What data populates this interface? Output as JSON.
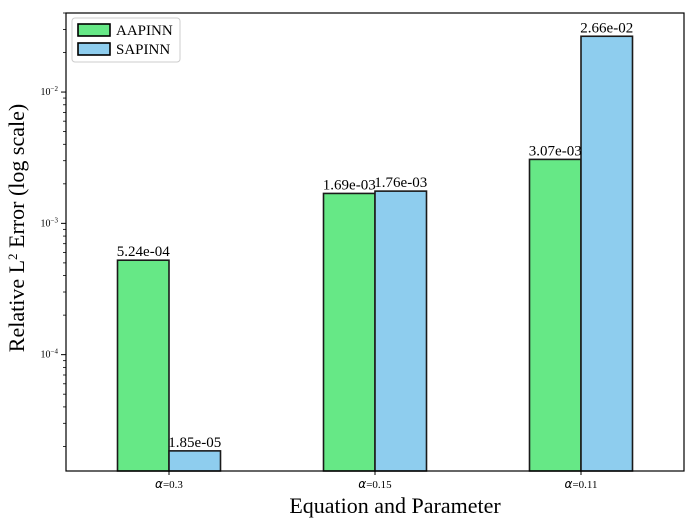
{
  "chart_data": {
    "type": "bar",
    "title": "",
    "xlabel": "Equation and Parameter",
    "ylabel": "Relative L",
    "ylabel_sup": "2",
    "ylabel_suffix": " Error (log scale)",
    "yscale": "log",
    "ylim": [
      1.3e-05,
      0.04
    ],
    "grid": false,
    "legend_position": "top-left",
    "categories": [
      {
        "symbol": "α",
        "text": "=0.3"
      },
      {
        "symbol": "α",
        "text": "=0.15"
      },
      {
        "symbol": "α",
        "text": "=0.11"
      }
    ],
    "series": [
      {
        "name": "AAPINN",
        "color": "#66e886",
        "values": [
          0.000524,
          0.00169,
          0.00307
        ],
        "labels": [
          "5.24e-04",
          "1.69e-03",
          "3.07e-03"
        ]
      },
      {
        "name": "SAPINN",
        "color": "#8ecdee",
        "values": [
          1.85e-05,
          0.00176,
          0.0266
        ],
        "labels": [
          "1.85e-05",
          "1.76e-03",
          "2.66e-02"
        ]
      }
    ],
    "y_ticks": [
      {
        "value": 0.0001,
        "mant": "10",
        "exp": "−4"
      },
      {
        "value": 0.001,
        "mant": "10",
        "exp": "−3"
      },
      {
        "value": 0.01,
        "mant": "10",
        "exp": "−2"
      }
    ]
  }
}
